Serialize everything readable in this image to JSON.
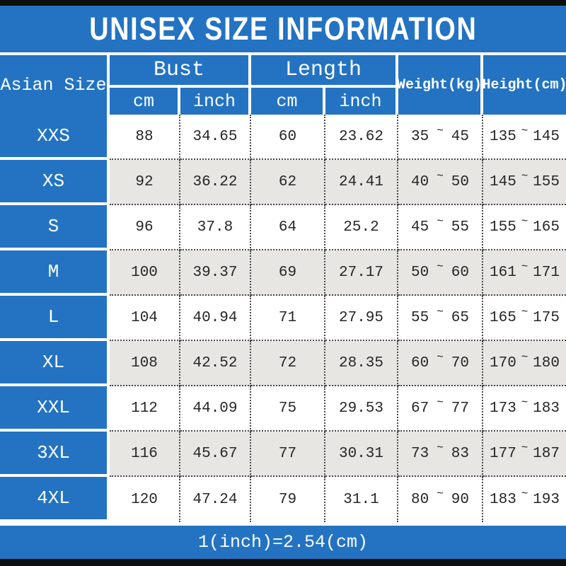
{
  "title": "UNISEX SIZE INFORMATION",
  "footer_note": "1(inch)=2.54(cm)",
  "tilde": "~",
  "colors": {
    "accent_blue": "#2373c2",
    "alt_row_gray": "#e8e6e3",
    "bar_black": "#0f0f0f",
    "text_dark": "#262626"
  },
  "table": {
    "corner_header": "Asian Size",
    "bust_header": "Bust",
    "length_header": "Length",
    "unit_cm": "cm",
    "unit_inch": "inch",
    "weight_header": "Weight(kg)",
    "height_header": "Height(cm)",
    "rows": [
      {
        "size": "XXS",
        "bust_cm": "88",
        "bust_inch": "34.65",
        "length_cm": "60",
        "length_inch": "23.62",
        "weight": [
          "35",
          "45"
        ],
        "height": [
          "135",
          "145"
        ]
      },
      {
        "size": "XS",
        "bust_cm": "92",
        "bust_inch": "36.22",
        "length_cm": "62",
        "length_inch": "24.41",
        "weight": [
          "40",
          "50"
        ],
        "height": [
          "145",
          "155"
        ]
      },
      {
        "size": "S",
        "bust_cm": "96",
        "bust_inch": "37.8",
        "length_cm": "64",
        "length_inch": "25.2",
        "weight": [
          "45",
          "55"
        ],
        "height": [
          "155",
          "165"
        ]
      },
      {
        "size": "M",
        "bust_cm": "100",
        "bust_inch": "39.37",
        "length_cm": "69",
        "length_inch": "27.17",
        "weight": [
          "50",
          "60"
        ],
        "height": [
          "161",
          "171"
        ]
      },
      {
        "size": "L",
        "bust_cm": "104",
        "bust_inch": "40.94",
        "length_cm": "71",
        "length_inch": "27.95",
        "weight": [
          "55",
          "65"
        ],
        "height": [
          "165",
          "175"
        ]
      },
      {
        "size": "XL",
        "bust_cm": "108",
        "bust_inch": "42.52",
        "length_cm": "72",
        "length_inch": "28.35",
        "weight": [
          "60",
          "70"
        ],
        "height": [
          "170",
          "180"
        ]
      },
      {
        "size": "XXL",
        "bust_cm": "112",
        "bust_inch": "44.09",
        "length_cm": "75",
        "length_inch": "29.53",
        "weight": [
          "67",
          "77"
        ],
        "height": [
          "173",
          "183"
        ]
      },
      {
        "size": "3XL",
        "bust_cm": "116",
        "bust_inch": "45.67",
        "length_cm": "77",
        "length_inch": "30.31",
        "weight": [
          "73",
          "83"
        ],
        "height": [
          "177",
          "187"
        ]
      },
      {
        "size": "4XL",
        "bust_cm": "120",
        "bust_inch": "47.24",
        "length_cm": "79",
        "length_inch": "31.1",
        "weight": [
          "80",
          "90"
        ],
        "height": [
          "183",
          "193"
        ]
      }
    ]
  }
}
